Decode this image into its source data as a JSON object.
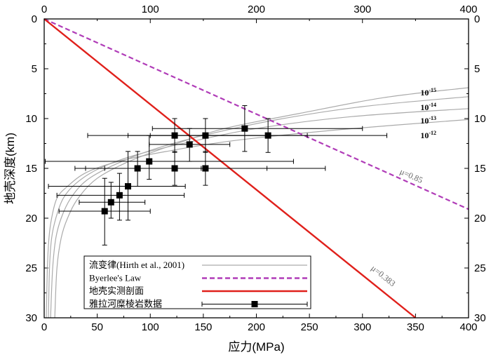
{
  "chart_data": {
    "type": "scatter",
    "xlabel": "应力(MPa)",
    "ylabel": "地壳深度(km)",
    "xlim": [
      0,
      400
    ],
    "ylim": [
      0,
      30
    ],
    "y_inverted": true,
    "x_ticks": [
      "0",
      "50",
      "100",
      "150",
      "200",
      "250",
      "300",
      "350",
      "400"
    ],
    "x_top_ticks": [
      "0",
      "100",
      "200",
      "300",
      "400"
    ],
    "y_ticks": [
      "0",
      "5",
      "10",
      "15",
      "20",
      "25",
      "30"
    ],
    "series": [
      {
        "name": "流变律(Hirth et al., 2001)",
        "kind": "curves",
        "color": "#aaaaaa",
        "curves": [
          {
            "label": "10-15",
            "base": "10",
            "exp": "-15",
            "points": [
              [
                10,
                30
              ],
              [
                12,
                25
              ],
              [
                16,
                22
              ],
              [
                22,
                20
              ],
              [
                32,
                18
              ],
              [
                50,
                16
              ],
              [
                80,
                14.3
              ],
              [
                120,
                12.7
              ],
              [
                170,
                11
              ],
              [
                240,
                9.5
              ],
              [
                320,
                7.9
              ],
              [
                400,
                6.9
              ]
            ]
          },
          {
            "label": "10-14",
            "base": "10",
            "exp": "-14",
            "points": [
              [
                6,
                30
              ],
              [
                8,
                25
              ],
              [
                11,
                22
              ],
              [
                16,
                20
              ],
              [
                25,
                18
              ],
              [
                40,
                16.2
              ],
              [
                65,
                14.7
              ],
              [
                100,
                13.2
              ],
              [
                150,
                11.7
              ],
              [
                220,
                10.1
              ],
              [
                300,
                8.8
              ],
              [
                400,
                7.8
              ]
            ]
          },
          {
            "label": "10-13",
            "base": "10",
            "exp": "-13",
            "points": [
              [
                4,
                30
              ],
              [
                5,
                25
              ],
              [
                7,
                22
              ],
              [
                11,
                20
              ],
              [
                18,
                18
              ],
              [
                30,
                16.5
              ],
              [
                52,
                15
              ],
              [
                85,
                13.7
              ],
              [
                135,
                12.4
              ],
              [
                200,
                11
              ],
              [
                290,
                9.8
              ],
              [
                400,
                9
              ]
            ]
          },
          {
            "label": "10-12",
            "base": "10",
            "exp": "-12",
            "points": [
              [
                2,
                30
              ],
              [
                3,
                25
              ],
              [
                4.5,
                22
              ],
              [
                7,
                20
              ],
              [
                12,
                18
              ],
              [
                22,
                16.8
              ],
              [
                40,
                15.4
              ],
              [
                70,
                14.3
              ],
              [
                115,
                13.3
              ],
              [
                180,
                12.2
              ],
              [
                280,
                11.1
              ],
              [
                400,
                10.1
              ]
            ]
          }
        ]
      },
      {
        "name": "Byerlee's Law",
        "kind": "line",
        "color": "#b03cb8",
        "dashed": true,
        "annotation": "μ=0.85",
        "points": [
          [
            0,
            0
          ],
          [
            400,
            19.1
          ]
        ]
      },
      {
        "name": "地壳实测剖面",
        "kind": "line",
        "color": "#e0201b",
        "annotation": "μ=0.383",
        "points": [
          [
            0,
            0
          ],
          [
            350,
            30
          ]
        ]
      },
      {
        "name": "雅拉河糜棱岩数据",
        "kind": "errorbar",
        "color": "#000000",
        "points": [
          {
            "x": 57,
            "y": 19.3,
            "xerr": [
              14,
              100
            ],
            "yerr": [
              16,
              22.7
            ]
          },
          {
            "x": 63,
            "y": 18.4,
            "xerr": [
              33,
              95
            ],
            "yerr": [
              16.4,
              20
            ]
          },
          {
            "x": 71,
            "y": 17.7,
            "xerr": [
              12,
              132
            ],
            "yerr": [
              15.5,
              20.2
            ]
          },
          {
            "x": 79,
            "y": 16.8,
            "xerr": [
              4,
              133
            ],
            "yerr": [
              13.3,
              20.2
            ]
          },
          {
            "x": 88,
            "y": 15,
            "xerr": [
              29,
              148
            ],
            "yerr": [
              13.3,
              16.8
            ]
          },
          {
            "x": 99,
            "y": 14.3,
            "xerr": [
              1,
              235
            ],
            "yerr": [
              11.7,
              16.1
            ]
          },
          {
            "x": 123,
            "y": 11.7,
            "xerr": [
              41,
              210
            ],
            "yerr": [
              10,
              13.4
            ]
          },
          {
            "x": 123,
            "y": 15,
            "xerr": [
              39,
              210
            ],
            "yerr": [
              13.3,
              16.7
            ]
          },
          {
            "x": 137,
            "y": 12.6,
            "xerr": [
              99,
              175
            ],
            "yerr": [
              11,
              14.3
            ]
          },
          {
            "x": 152,
            "y": 11.7,
            "xerr": [
              79,
              248
            ],
            "yerr": [
              10,
              13.4
            ]
          },
          {
            "x": 152,
            "y": 15,
            "xerr": [
              57,
              265
            ],
            "yerr": [
              13.3,
              16.7
            ]
          },
          {
            "x": 189,
            "y": 11,
            "xerr": [
              102,
              300
            ],
            "yerr": [
              8.7,
              13.3
            ]
          },
          {
            "x": 211,
            "y": 11.7,
            "xerr": [
              100,
              323
            ],
            "yerr": [
              10,
              13.4
            ]
          }
        ]
      }
    ],
    "legend": {
      "placement": "bottom-left",
      "entries": [
        {
          "label": "流变律(Hirth et al., 2001)"
        },
        {
          "label": "Byerlee's Law"
        },
        {
          "label": "地壳实测剖面"
        },
        {
          "label": "雅拉河糜棱岩数据"
        }
      ]
    }
  }
}
